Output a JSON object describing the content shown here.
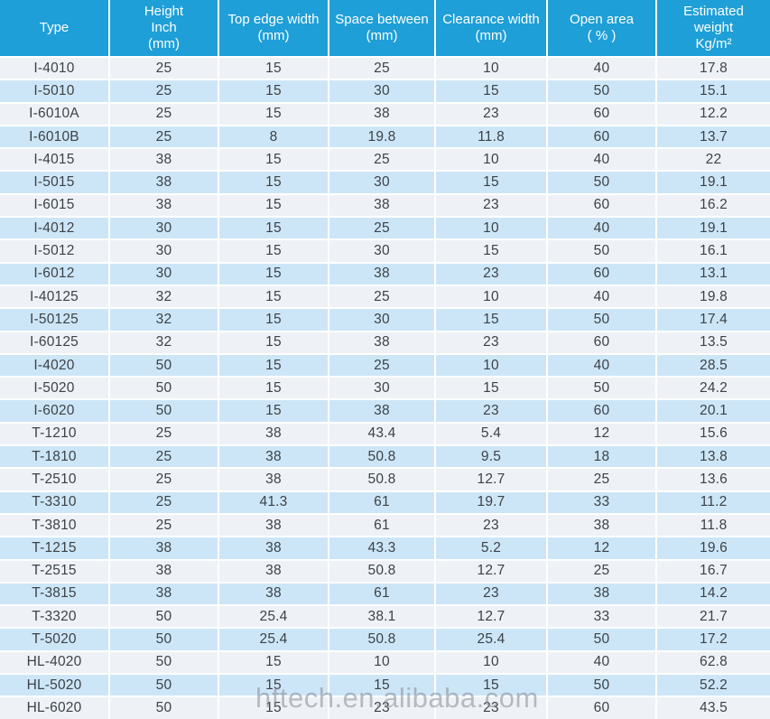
{
  "colors": {
    "header_bg": "#1e9fd7",
    "header_text": "#ffffff",
    "row_light_bg": "#eef2f6",
    "row_blue_bg": "#cde6f7",
    "separator": "#ffffff",
    "cell_text": "#3c4247",
    "watermark_text": "#878d94"
  },
  "watermark": {
    "text": "hftech.en.alibaba.com"
  },
  "chart_data": {
    "type": "table",
    "columns": [
      "Type",
      "Height\nInch\n(mm)",
      "Top edge width\n(mm)",
      "Space between\n(mm)",
      "Clearance width\n(mm)",
      "Open area\n( % )",
      "Estimated\nweight\nKg/m²"
    ],
    "columns_flat": [
      "Type",
      "Height Inch (mm)",
      "Top edge width (mm)",
      "Space between (mm)",
      "Clearance width (mm)",
      "Open area (%)",
      "Estimated weight Kg/m2"
    ],
    "rows": [
      [
        "I-4010",
        "25",
        "15",
        "25",
        "10",
        "40",
        "17.8"
      ],
      [
        "I-5010",
        "25",
        "15",
        "30",
        "15",
        "50",
        "15.1"
      ],
      [
        "I-6010A",
        "25",
        "15",
        "38",
        "23",
        "60",
        "12.2"
      ],
      [
        "I-6010B",
        "25",
        "8",
        "19.8",
        "11.8",
        "60",
        "13.7"
      ],
      [
        "I-4015",
        "38",
        "15",
        "25",
        "10",
        "40",
        "22"
      ],
      [
        "I-5015",
        "38",
        "15",
        "30",
        "15",
        "50",
        "19.1"
      ],
      [
        "I-6015",
        "38",
        "15",
        "38",
        "23",
        "60",
        "16.2"
      ],
      [
        "I-4012",
        "30",
        "15",
        "25",
        "10",
        "40",
        "19.1"
      ],
      [
        "I-5012",
        "30",
        "15",
        "30",
        "15",
        "50",
        "16.1"
      ],
      [
        "I-6012",
        "30",
        "15",
        "38",
        "23",
        "60",
        "13.1"
      ],
      [
        "I-40125",
        "32",
        "15",
        "25",
        "10",
        "40",
        "19.8"
      ],
      [
        "I-50125",
        "32",
        "15",
        "30",
        "15",
        "50",
        "17.4"
      ],
      [
        "I-60125",
        "32",
        "15",
        "38",
        "23",
        "60",
        "13.5"
      ],
      [
        "I-4020",
        "50",
        "15",
        "25",
        "10",
        "40",
        "28.5"
      ],
      [
        "I-5020",
        "50",
        "15",
        "30",
        "15",
        "50",
        "24.2"
      ],
      [
        "I-6020",
        "50",
        "15",
        "38",
        "23",
        "60",
        "20.1"
      ],
      [
        "T-1210",
        "25",
        "38",
        "43.4",
        "5.4",
        "12",
        "15.6"
      ],
      [
        "T-1810",
        "25",
        "38",
        "50.8",
        "9.5",
        "18",
        "13.8"
      ],
      [
        "T-2510",
        "25",
        "38",
        "50.8",
        "12.7",
        "25",
        "13.6"
      ],
      [
        "T-3310",
        "25",
        "41.3",
        "61",
        "19.7",
        "33",
        "11.2"
      ],
      [
        "T-3810",
        "25",
        "38",
        "61",
        "23",
        "38",
        "11.8"
      ],
      [
        "T-1215",
        "38",
        "38",
        "43.3",
        "5.2",
        "12",
        "19.6"
      ],
      [
        "T-2515",
        "38",
        "38",
        "50.8",
        "12.7",
        "25",
        "16.7"
      ],
      [
        "T-3815",
        "38",
        "38",
        "61",
        "23",
        "38",
        "14.2"
      ],
      [
        "T-3320",
        "50",
        "25.4",
        "38.1",
        "12.7",
        "33",
        "21.7"
      ],
      [
        "T-5020",
        "50",
        "25.4",
        "50.8",
        "25.4",
        "50",
        "17.2"
      ],
      [
        "HL-4020",
        "50",
        "15",
        "10",
        "10",
        "40",
        "62.8"
      ],
      [
        "HL-5020",
        "50",
        "15",
        "15",
        "15",
        "50",
        "52.2"
      ],
      [
        "HL-6020",
        "50",
        "15",
        "23",
        "23",
        "60",
        "43.5"
      ]
    ]
  }
}
